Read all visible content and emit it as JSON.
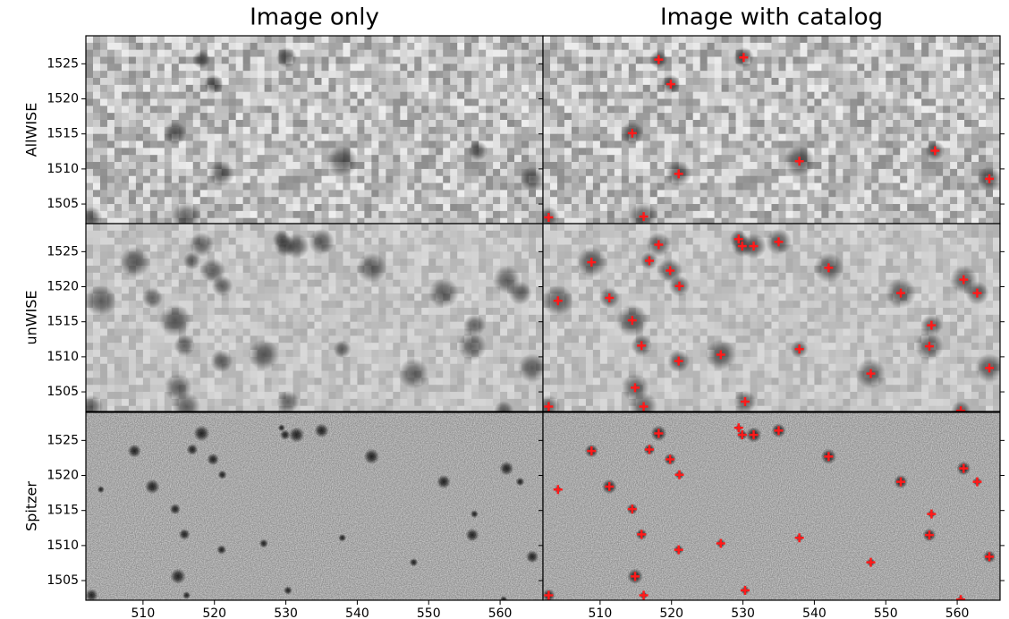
{
  "chart_data": {
    "type": "scatter",
    "column_titles": [
      "Image only",
      "Image with catalog"
    ],
    "marker_color": "#ff1a1a",
    "xlim": [
      502,
      566
    ],
    "ylim": [
      1502.2,
      1529
    ],
    "xticks": [
      510,
      520,
      530,
      540,
      550,
      560
    ],
    "yticks": [
      1505,
      1510,
      1515,
      1520,
      1525
    ],
    "rows": [
      {
        "label": "AllWISE",
        "x": [
          518.2,
          530.1,
          519.9,
          514.5,
          537.9,
          556.9,
          521,
          564.5,
          516.1,
          502.8
        ],
        "y": [
          1525.6,
          1525.9,
          1522.1,
          1515.1,
          1511.1,
          1512.6,
          1509.3,
          1508.6,
          1503.2,
          1503.1
        ]
      },
      {
        "label": "unWISE",
        "x": [
          529.4,
          529.9,
          531.5,
          535,
          518.2,
          508.8,
          516.9,
          519.8,
          542,
          521.1,
          552.1,
          560.9,
          562.8,
          504.1,
          511.3,
          514.5,
          556.4,
          515.8,
          556.1,
          537.9,
          521,
          526.9,
          547.9,
          564.5,
          514.9,
          516.1,
          530.3,
          502.8,
          560.5
        ],
        "y": [
          1526.8,
          1525.8,
          1525.8,
          1526.4,
          1526.0,
          1523.5,
          1523.7,
          1522.3,
          1522.7,
          1520.1,
          1519.1,
          1521,
          1519.1,
          1518,
          1518.4,
          1515.2,
          1514.5,
          1511.6,
          1511.5,
          1511.1,
          1509.4,
          1510.3,
          1507.6,
          1508.4,
          1505.6,
          1502.9,
          1503.6,
          1502.9,
          1502.3
        ]
      },
      {
        "label": "Spitzer",
        "x": [
          529.4,
          529.9,
          531.5,
          535,
          518.2,
          508.8,
          516.9,
          519.8,
          542,
          521.1,
          552.1,
          560.9,
          562.8,
          504.1,
          511.3,
          514.5,
          556.4,
          515.8,
          556.1,
          537.9,
          521,
          526.9,
          547.9,
          564.5,
          514.9,
          516.1,
          530.3,
          502.8,
          560.5
        ],
        "y": [
          1526.8,
          1525.8,
          1525.8,
          1526.4,
          1526.0,
          1523.5,
          1523.7,
          1522.3,
          1522.7,
          1520.1,
          1519.1,
          1521,
          1519.1,
          1518,
          1518.4,
          1515.2,
          1514.5,
          1511.6,
          1511.5,
          1511.1,
          1509.4,
          1510.3,
          1507.6,
          1508.4,
          1505.6,
          1502.9,
          1503.6,
          1502.9,
          1502.3
        ]
      }
    ]
  }
}
